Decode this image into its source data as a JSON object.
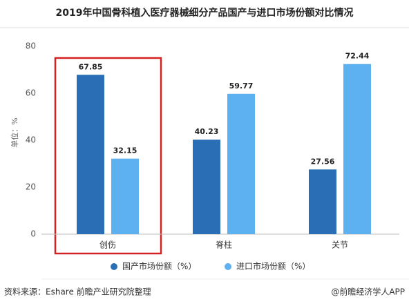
{
  "chart_data": {
    "type": "bar",
    "title": "2019年中国骨科植入医疗器械细分产品国产与进口市场份额对比情况",
    "y_label": "单位：%",
    "categories": [
      "创伤",
      "脊柱",
      "关节"
    ],
    "series": [
      {
        "name": "国产市场份额（%）",
        "color": "#2a6fb5",
        "values": [
          67.85,
          40.23,
          27.56
        ]
      },
      {
        "name": "进口市场份额（%）",
        "color": "#5db1f0",
        "values": [
          32.15,
          59.77,
          72.44
        ]
      }
    ],
    "ylim": [
      0,
      80
    ],
    "yticks": [
      0,
      20,
      40,
      60,
      80
    ],
    "grid": false,
    "source": "资料来源：Eshare 前瞻产业研究院整理",
    "credit": "@前瞻经济学人APP"
  }
}
